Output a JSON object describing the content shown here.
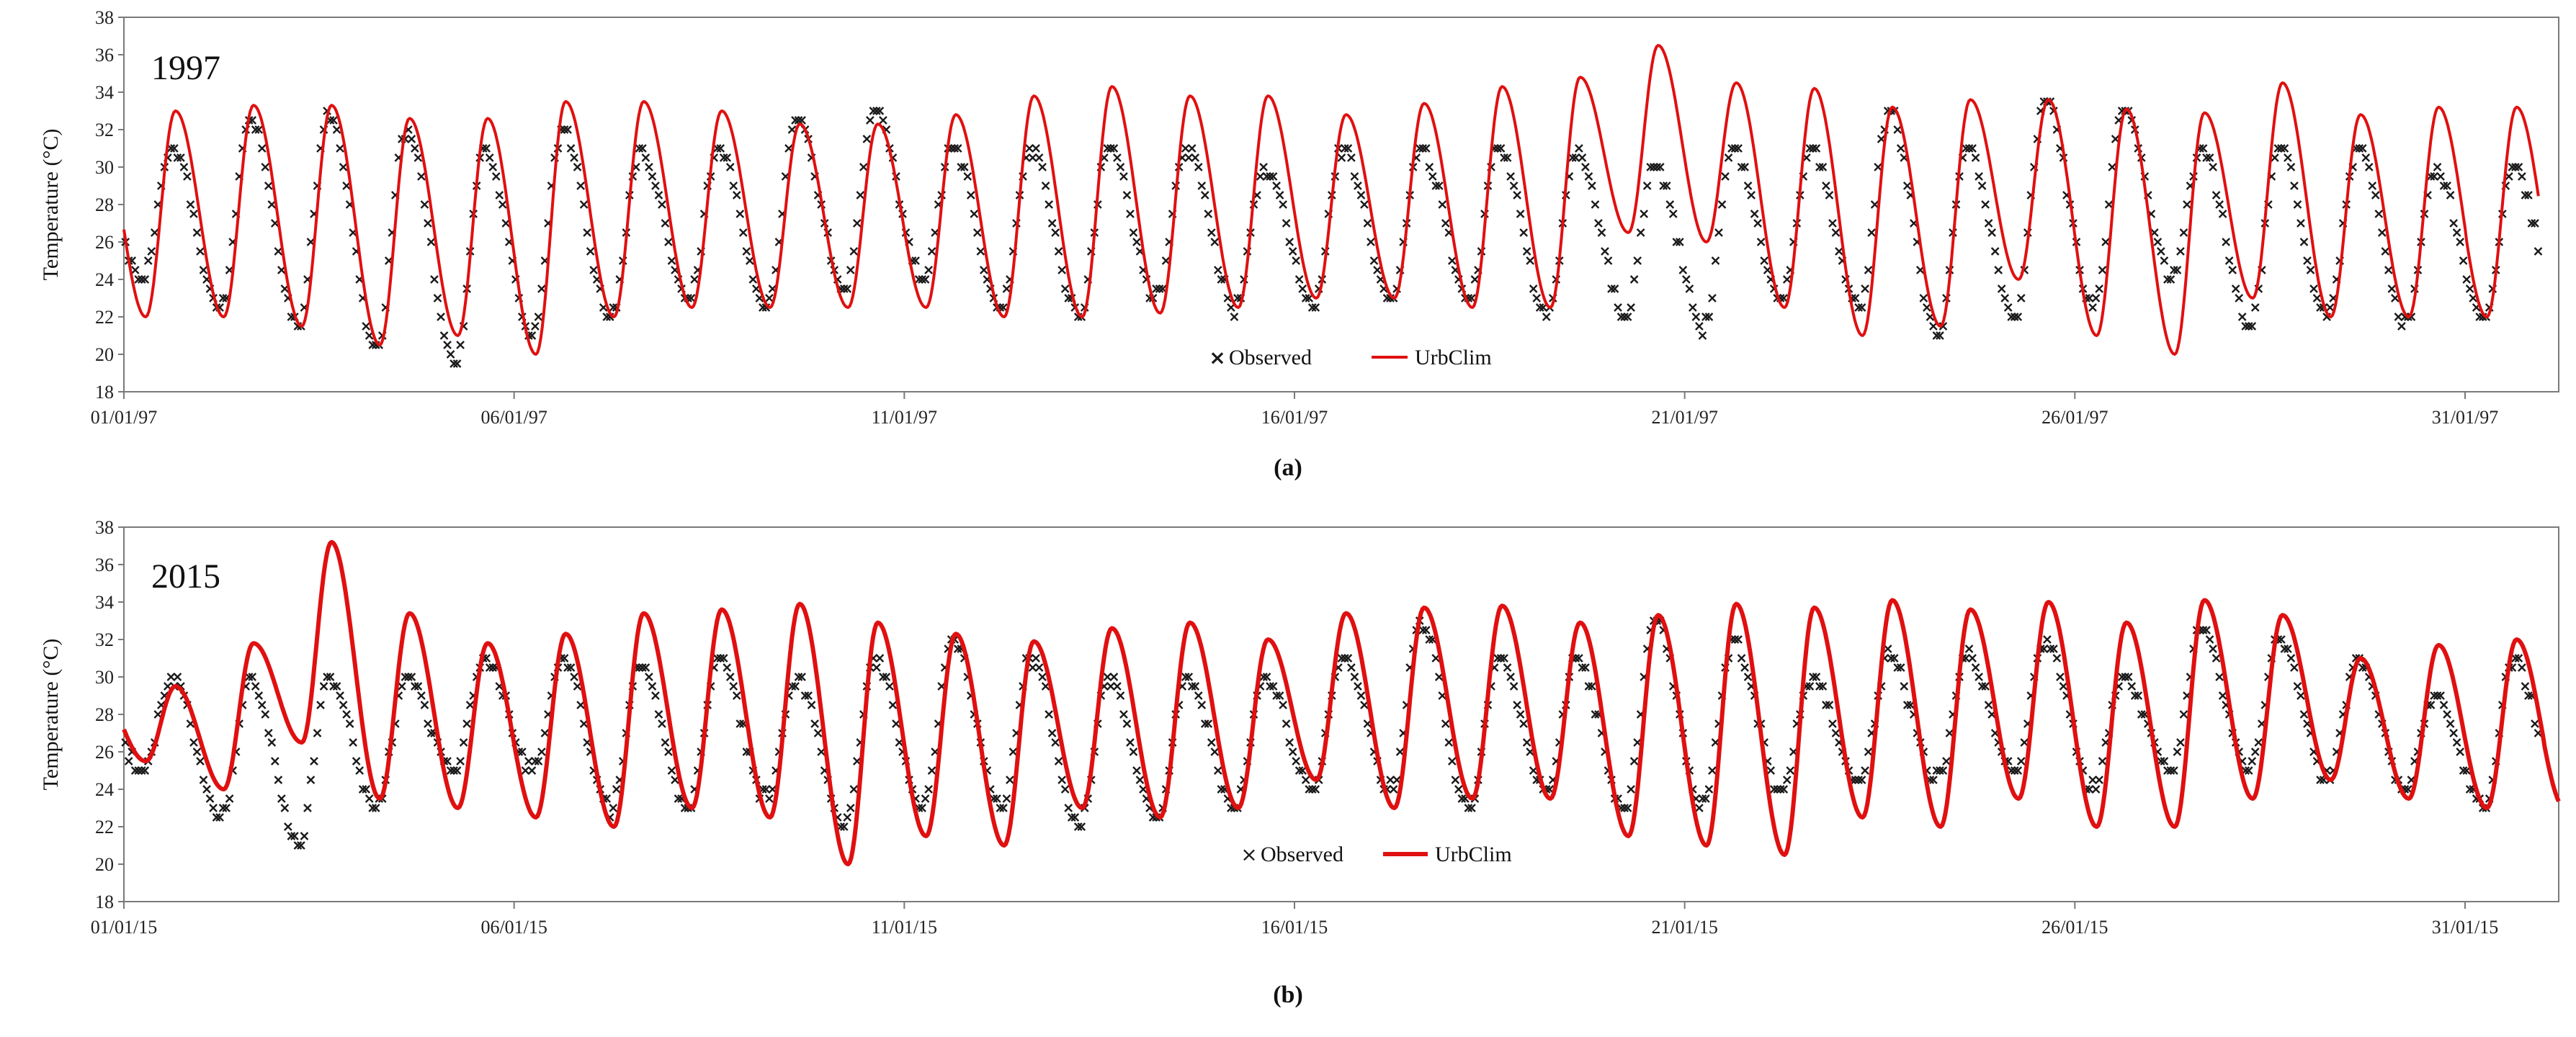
{
  "chart_data": [
    {
      "type": "line",
      "panel_caption": "(a)",
      "year_label": "1997",
      "ylabel": "Temperature (°C)",
      "ylim": [
        18,
        38
      ],
      "yticks": [
        18,
        20,
        22,
        24,
        26,
        28,
        30,
        32,
        34,
        36,
        38
      ],
      "ytick_labels": [
        "18",
        "20",
        "22",
        "24",
        "26",
        "28",
        "30",
        "32",
        "34",
        "36",
        "38"
      ],
      "xlim": [
        1,
        32.2
      ],
      "xticks": [
        1,
        6,
        11,
        16,
        21,
        26,
        31
      ],
      "xtick_labels": [
        "01/01/97",
        "06/01/97",
        "11/01/97",
        "16/01/97",
        "21/01/97",
        "26/01/97",
        "31/01/97"
      ],
      "legend": [
        "Observed",
        "UrbClim"
      ],
      "series": [
        {
          "name": "Observed",
          "marker": "x",
          "color": "#1a1a1a",
          "min_temps": [
            24,
            22.5,
            21.5,
            20.3,
            19.5,
            21,
            22,
            23,
            22.5,
            23.5,
            24,
            22.5,
            22,
            23,
            22.5,
            22.8,
            23,
            23,
            22,
            22,
            21.5,
            23,
            22.5,
            21,
            22,
            22.5,
            24,
            21.5,
            22,
            21.8,
            22
          ],
          "max_temps": [
            31,
            32.5,
            33,
            32,
            31,
            32,
            31,
            31,
            32.5,
            33,
            31,
            31,
            31,
            31,
            30,
            31,
            31,
            31,
            31,
            30,
            31,
            31,
            33,
            31,
            33.5,
            33,
            31,
            31,
            31,
            30,
            30
          ],
          "min_phase": 0.24,
          "max_phase": 0.62
        },
        {
          "name": "UrbClim",
          "line": true,
          "color": "#e01010",
          "min_temps": [
            22,
            22,
            21.5,
            20.5,
            21,
            20,
            22,
            22.5,
            22.5,
            22.5,
            22.5,
            22,
            22,
            22.2,
            22.5,
            23,
            23,
            22.5,
            22.5,
            26.5,
            26,
            22.5,
            21,
            21.5,
            24,
            21,
            20,
            23,
            22,
            22
          ],
          "max_temps": [
            33,
            33.3,
            33.3,
            32.6,
            32.6,
            33.5,
            33.5,
            33,
            32.3,
            32.3,
            32.8,
            33.8,
            34.3,
            33.8,
            33.8,
            32.8,
            33.4,
            34.3,
            34.8,
            36.5,
            34.5,
            34.2,
            33.2,
            33.6,
            33.6,
            33.1,
            32.9,
            34.5,
            32.8,
            33.2
          ],
          "min_phase": 0.28,
          "max_phase": 0.66
        }
      ]
    },
    {
      "type": "line",
      "panel_caption": "(b)",
      "year_label": "2015",
      "ylabel": "Temperature (°C)",
      "ylim": [
        18,
        38
      ],
      "yticks": [
        18,
        20,
        22,
        24,
        26,
        28,
        30,
        32,
        34,
        36,
        38
      ],
      "ytick_labels": [
        "18",
        "20",
        "22",
        "24",
        "26",
        "28",
        "30",
        "32",
        "34",
        "36",
        "38"
      ],
      "xlim": [
        1,
        32.2
      ],
      "xticks": [
        1,
        6,
        11,
        16,
        21,
        26,
        31
      ],
      "xtick_labels": [
        "01/01/15",
        "06/01/15",
        "11/01/15",
        "16/01/15",
        "21/01/15",
        "26/01/15",
        "31/01/15"
      ],
      "legend": [
        "Observed",
        "UrbClim"
      ],
      "series": [
        {
          "name": "Observed",
          "marker": "x",
          "color": "#1a1a1a",
          "min_temps": [
            25,
            22.5,
            21,
            23,
            25,
            25,
            23,
            23,
            23.5,
            22,
            23,
            23,
            22,
            22.5,
            23,
            24,
            24,
            23,
            24,
            23,
            23,
            24,
            24.5,
            24.5,
            25,
            24,
            25,
            25,
            24.5,
            24,
            23
          ],
          "max_temps": [
            30,
            30,
            30,
            30,
            31,
            31,
            30.5,
            31,
            30,
            31,
            32,
            31,
            30,
            30,
            30,
            31,
            33,
            31,
            31,
            33,
            32,
            30,
            31,
            31,
            32,
            30,
            32.5,
            32,
            31,
            29,
            31
          ],
          "min_phase": 0.24,
          "max_phase": 0.62
        },
        {
          "name": "UrbClim",
          "line": true,
          "color": "#e01010",
          "min_temps": [
            25.5,
            24,
            26.5,
            23.5,
            23,
            22.5,
            22,
            23,
            22.5,
            20,
            21.5,
            21,
            23,
            22.5,
            23,
            24.5,
            23,
            23.5,
            23.5,
            21.5,
            21,
            20.5,
            22.5,
            22,
            23.5,
            22,
            22,
            23.5,
            24.5,
            23.5,
            23
          ],
          "max_temps": [
            29.5,
            31.8,
            37.2,
            33.4,
            31.8,
            32.3,
            33.4,
            33.6,
            33.9,
            32.9,
            32.3,
            31.9,
            32.6,
            32.9,
            32.0,
            33.4,
            33.7,
            33.8,
            32.9,
            33.3,
            33.9,
            33.7,
            34.1,
            33.6,
            34.0,
            32.9,
            34.1,
            33.3,
            31.0,
            31.7,
            32.0
          ],
          "min_phase": 0.28,
          "max_phase": 0.66
        }
      ]
    }
  ]
}
